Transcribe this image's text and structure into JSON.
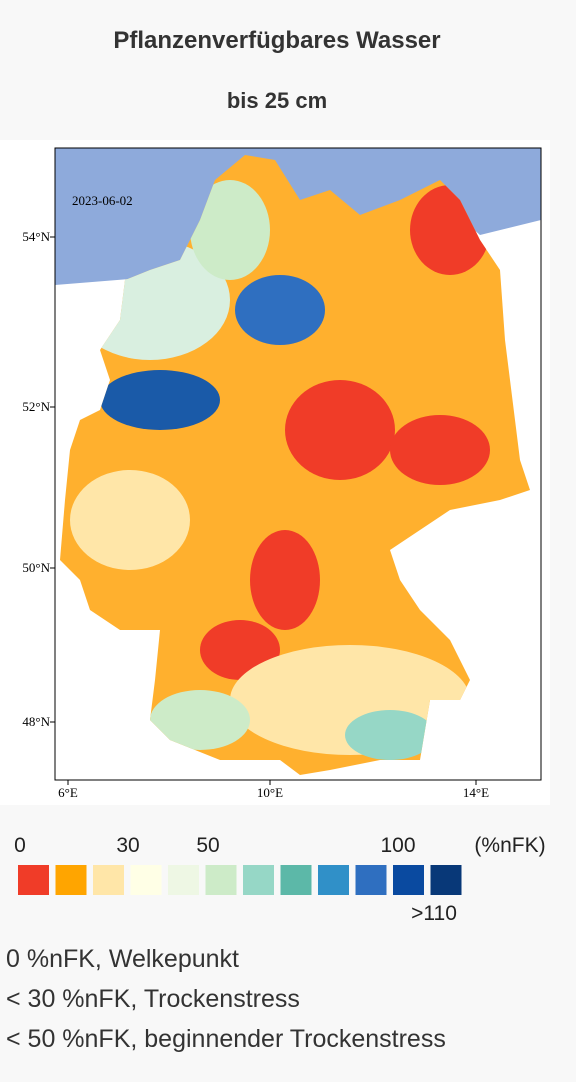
{
  "header": {
    "title": "Pflanzenverfügbares Wasser",
    "subtitle": "bis 25 cm"
  },
  "map": {
    "date": "2023-06-02",
    "lat_labels": [
      "54°N",
      "52°N",
      "50°N",
      "48°N"
    ],
    "lon_labels": [
      "6°E",
      "10°E",
      "14°E"
    ]
  },
  "legend": {
    "labels": [
      "0",
      "30",
      "50",
      "100"
    ],
    "unit": "(%nFK)",
    "max_label": ">110",
    "colors": [
      "#f03c28",
      "#ffa500",
      "#ffe6a8",
      "#ffffe6",
      "#eef7e4",
      "#cdebc8",
      "#96d7c6",
      "#5cb8a8",
      "#3090c8",
      "#2f6fc0",
      "#0a4aa0",
      "#083878"
    ]
  },
  "notes": [
    "0 %nFK, Welkepunkt",
    "< 30 %nFK, Trockenstress",
    "< 50 %nFK, beginnender Trockenstress"
  ]
}
